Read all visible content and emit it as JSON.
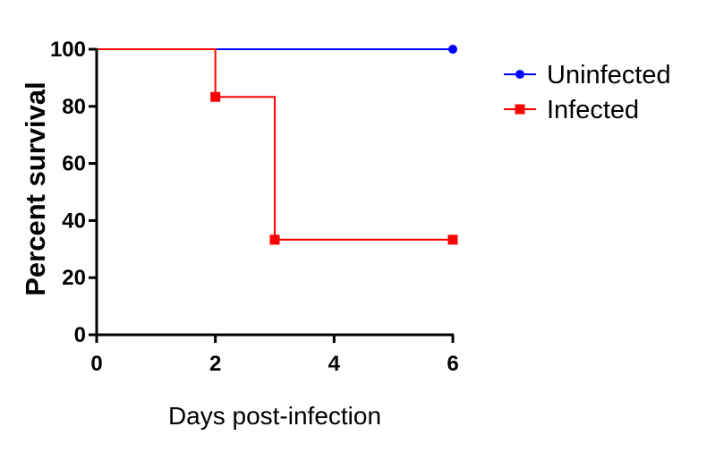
{
  "chart_data": {
    "type": "line",
    "step": true,
    "title": "",
    "xlabel": "Days post-infection",
    "ylabel": "Percent survival",
    "xlim": [
      0,
      6
    ],
    "ylim": [
      0,
      100
    ],
    "xticks": [
      0,
      2,
      4,
      6
    ],
    "yticks": [
      0,
      20,
      40,
      60,
      80,
      100
    ],
    "grid": false,
    "legend_position": "top-right",
    "series": [
      {
        "name": "Uninfected",
        "color": "#0000ff",
        "marker": "circle",
        "x": [
          0,
          6
        ],
        "y": [
          100,
          100
        ],
        "marked_points": [
          [
            6,
            100
          ]
        ]
      },
      {
        "name": "Infected",
        "color": "#ff0000",
        "marker": "square",
        "x": [
          0,
          2,
          3,
          6
        ],
        "y": [
          100,
          83.3,
          33.3,
          33.3
        ],
        "marked_points": [
          [
            2,
            83.3
          ],
          [
            3,
            33.3
          ],
          [
            6,
            33.3
          ]
        ]
      }
    ]
  }
}
